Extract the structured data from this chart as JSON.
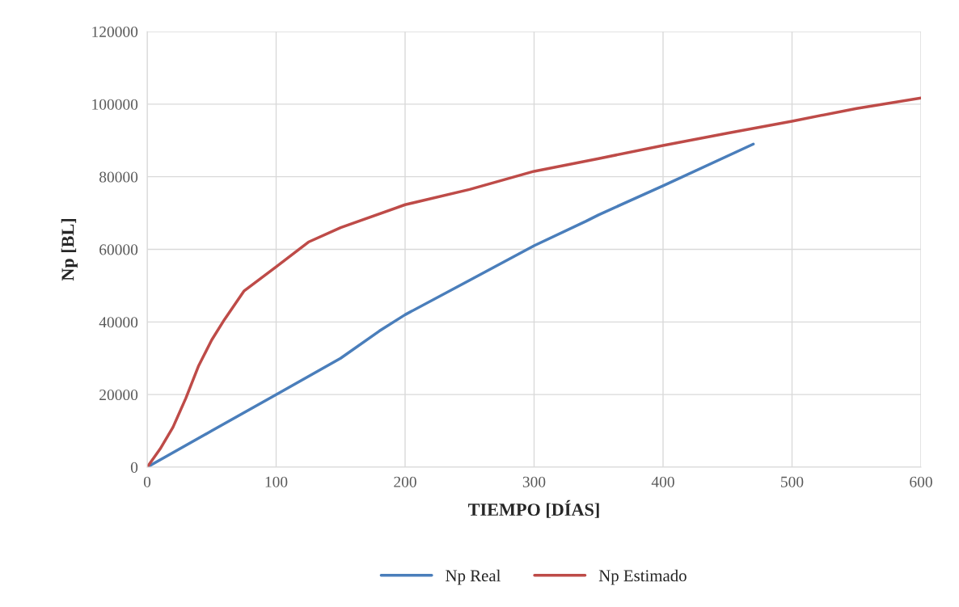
{
  "chart_data": {
    "type": "line",
    "xlabel": "TIEMPO [DÍAS]",
    "ylabel": "Np [BL]",
    "xlim": [
      0,
      600
    ],
    "xticks": [
      0,
      100,
      200,
      300,
      400,
      500,
      600
    ],
    "ylim": [
      0,
      120000
    ],
    "yticks": [
      0,
      20000,
      40000,
      60000,
      80000,
      100000,
      120000
    ],
    "grid": true,
    "legend": "bottom",
    "marker": "none",
    "line_style": "solid",
    "series": [
      {
        "name": "Np Real",
        "color": "#4a7ebb",
        "x": [
          0,
          50,
          100,
          150,
          180,
          200,
          250,
          300,
          340,
          350,
          400,
          470
        ],
        "values": [
          0,
          10000,
          20000,
          30000,
          37500,
          42000,
          51500,
          61000,
          67700,
          69500,
          77500,
          89000
        ]
      },
      {
        "name": "Np Estimado",
        "color": "#be4b48",
        "x": [
          0,
          10,
          20,
          30,
          40,
          50,
          60,
          75,
          100,
          125,
          150,
          200,
          250,
          300,
          350,
          400,
          450,
          500,
          550,
          600
        ],
        "values": [
          0,
          5000,
          11000,
          19000,
          28000,
          35000,
          40700,
          48500,
          55200,
          62000,
          66000,
          72300,
          76500,
          81500,
          85000,
          88600,
          92000,
          95300,
          98800,
          101700
        ]
      }
    ]
  }
}
